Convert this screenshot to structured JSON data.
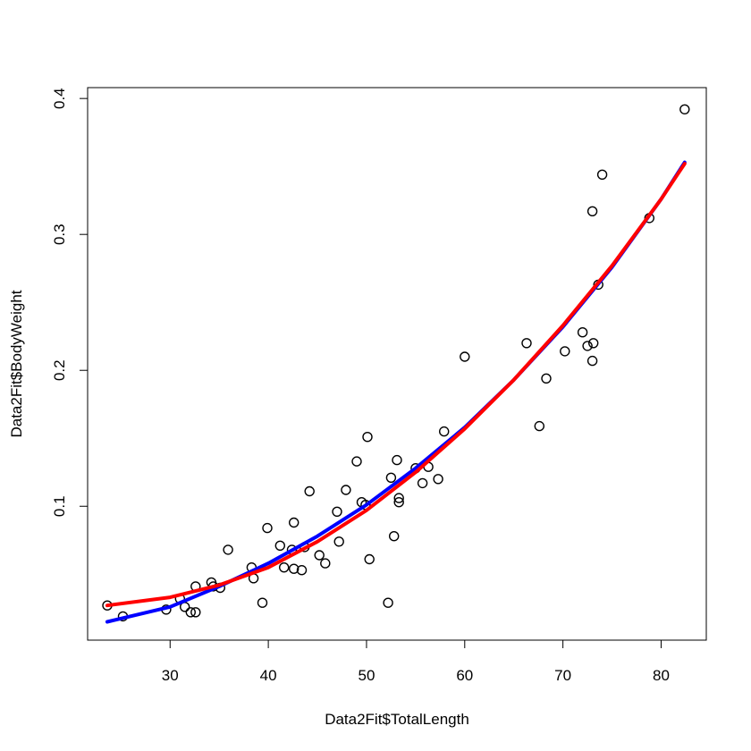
{
  "chart_data": {
    "type": "scatter",
    "title": "",
    "xlabel": "Data2Fit$TotalLength",
    "ylabel": "Data2Fit$BodyWeight",
    "xlim": [
      21.6,
      84.6
    ],
    "ylim": [
      0.0015,
      0.408
    ],
    "x_ticks": [
      30,
      40,
      50,
      60,
      70,
      80
    ],
    "y_ticks": [
      0.1,
      0.2,
      0.3,
      0.4
    ],
    "grid": false,
    "legend": "none",
    "points": [
      [
        23.6,
        0.027
      ],
      [
        25.2,
        0.019
      ],
      [
        29.6,
        0.024
      ],
      [
        31.0,
        0.032
      ],
      [
        31.5,
        0.026
      ],
      [
        32.1,
        0.022
      ],
      [
        32.6,
        0.022
      ],
      [
        32.6,
        0.041
      ],
      [
        34.2,
        0.044
      ],
      [
        34.4,
        0.041
      ],
      [
        35.1,
        0.04
      ],
      [
        35.9,
        0.068
      ],
      [
        38.3,
        0.055
      ],
      [
        38.5,
        0.047
      ],
      [
        39.4,
        0.029
      ],
      [
        39.9,
        0.084
      ],
      [
        41.2,
        0.071
      ],
      [
        41.6,
        0.055
      ],
      [
        42.4,
        0.068
      ],
      [
        42.6,
        0.088
      ],
      [
        42.6,
        0.054
      ],
      [
        43.4,
        0.053
      ],
      [
        43.7,
        0.07
      ],
      [
        44.2,
        0.111
      ],
      [
        45.2,
        0.064
      ],
      [
        45.8,
        0.058
      ],
      [
        47.0,
        0.096
      ],
      [
        47.2,
        0.074
      ],
      [
        47.9,
        0.112
      ],
      [
        49.0,
        0.133
      ],
      [
        49.5,
        0.103
      ],
      [
        49.9,
        0.101
      ],
      [
        50.1,
        0.151
      ],
      [
        50.3,
        0.061
      ],
      [
        52.2,
        0.029
      ],
      [
        52.5,
        0.121
      ],
      [
        52.8,
        0.078
      ],
      [
        53.1,
        0.134
      ],
      [
        53.3,
        0.103
      ],
      [
        53.3,
        0.106
      ],
      [
        55.0,
        0.128
      ],
      [
        55.7,
        0.117
      ],
      [
        56.3,
        0.129
      ],
      [
        57.3,
        0.12
      ],
      [
        57.9,
        0.155
      ],
      [
        60.0,
        0.21
      ],
      [
        66.3,
        0.22
      ],
      [
        67.6,
        0.159
      ],
      [
        68.3,
        0.194
      ],
      [
        70.2,
        0.214
      ],
      [
        72.0,
        0.228
      ],
      [
        72.5,
        0.218
      ],
      [
        73.0,
        0.207
      ],
      [
        73.0,
        0.317
      ],
      [
        73.1,
        0.22
      ],
      [
        73.6,
        0.263
      ],
      [
        74.0,
        0.344
      ],
      [
        78.8,
        0.312
      ],
      [
        82.4,
        0.392
      ]
    ],
    "series": [
      {
        "color": "#0000ff",
        "values": [
          [
            23.6,
            0.015
          ],
          [
            30,
            0.026
          ],
          [
            35,
            0.041
          ],
          [
            40,
            0.058
          ],
          [
            45,
            0.078
          ],
          [
            50,
            0.101
          ],
          [
            55,
            0.128
          ],
          [
            60,
            0.158
          ],
          [
            65,
            0.193
          ],
          [
            70,
            0.232
          ],
          [
            75,
            0.276
          ],
          [
            80,
            0.326
          ],
          [
            82.4,
            0.353
          ]
        ]
      },
      {
        "color": "#ff0000",
        "values": [
          [
            23.6,
            0.027
          ],
          [
            30,
            0.033
          ],
          [
            35,
            0.042
          ],
          [
            40,
            0.055
          ],
          [
            45,
            0.074
          ],
          [
            50,
            0.097
          ],
          [
            55,
            0.125
          ],
          [
            60,
            0.157
          ],
          [
            65,
            0.193
          ],
          [
            70,
            0.233
          ],
          [
            75,
            0.277
          ],
          [
            80,
            0.326
          ],
          [
            82.4,
            0.352
          ]
        ]
      }
    ]
  }
}
